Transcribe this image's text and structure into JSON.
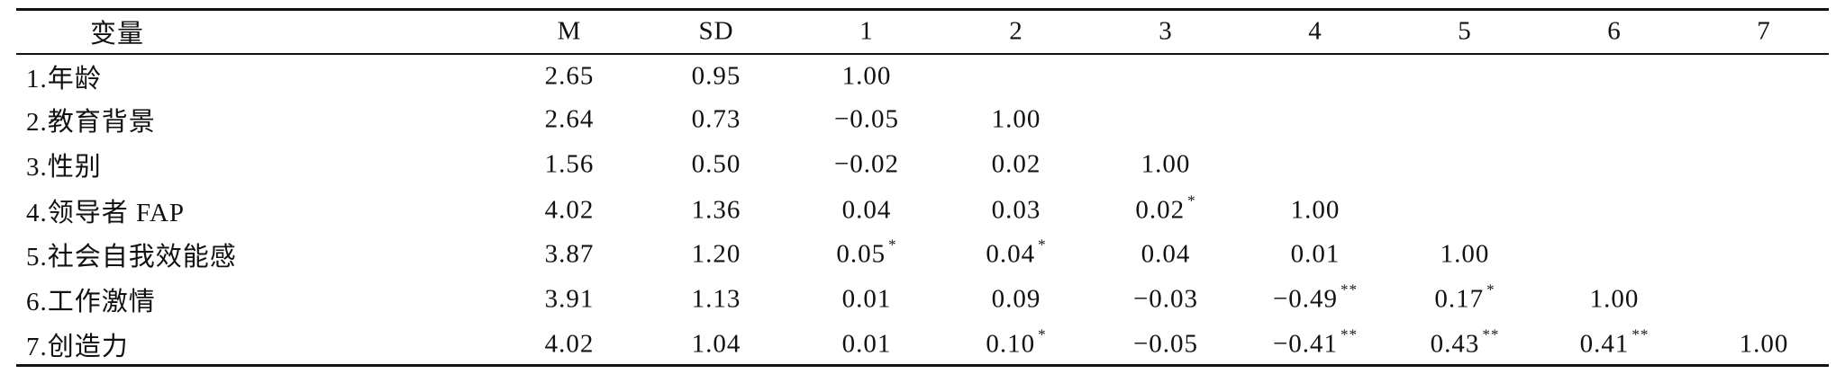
{
  "table": {
    "headers": [
      "变量",
      "M",
      "SD",
      "1",
      "2",
      "3",
      "4",
      "5",
      "6",
      "7"
    ],
    "rows": [
      {
        "label": "1.年龄",
        "cells": [
          "2.65",
          "0.95",
          "1.00"
        ]
      },
      {
        "label": "2.教育背景",
        "cells": [
          "2.64",
          "0.73",
          "−0.05",
          "1.00"
        ]
      },
      {
        "label": "3.性别",
        "cells": [
          "1.56",
          "0.50",
          "−0.02",
          "0.02",
          "1.00"
        ]
      },
      {
        "label": "4.领导者 FAP",
        "cells": [
          "4.02",
          "1.36",
          "0.04",
          "0.03",
          {
            "value": "0.02",
            "sig": "*"
          },
          "1.00"
        ]
      },
      {
        "label": "5.社会自我效能感",
        "cells": [
          "3.87",
          "1.20",
          {
            "value": "0.05",
            "sig": "*"
          },
          {
            "value": "0.04",
            "sig": "*"
          },
          "0.04",
          "0.01",
          "1.00"
        ]
      },
      {
        "label": "6.工作激情",
        "cells": [
          "3.91",
          "1.13",
          "0.01",
          "0.09",
          "−0.03",
          {
            "value": "−0.49",
            "sig": "**"
          },
          {
            "value": "0.17",
            "sig": "*"
          },
          "1.00"
        ]
      },
      {
        "label": "7.创造力",
        "cells": [
          "4.02",
          "1.04",
          "0.01",
          {
            "value": "0.10",
            "sig": "*"
          },
          "−0.05",
          {
            "value": "−0.41",
            "sig": "**"
          },
          {
            "value": "0.43",
            "sig": "**"
          },
          {
            "value": "0.41",
            "sig": "**"
          },
          "1.00"
        ]
      }
    ]
  }
}
